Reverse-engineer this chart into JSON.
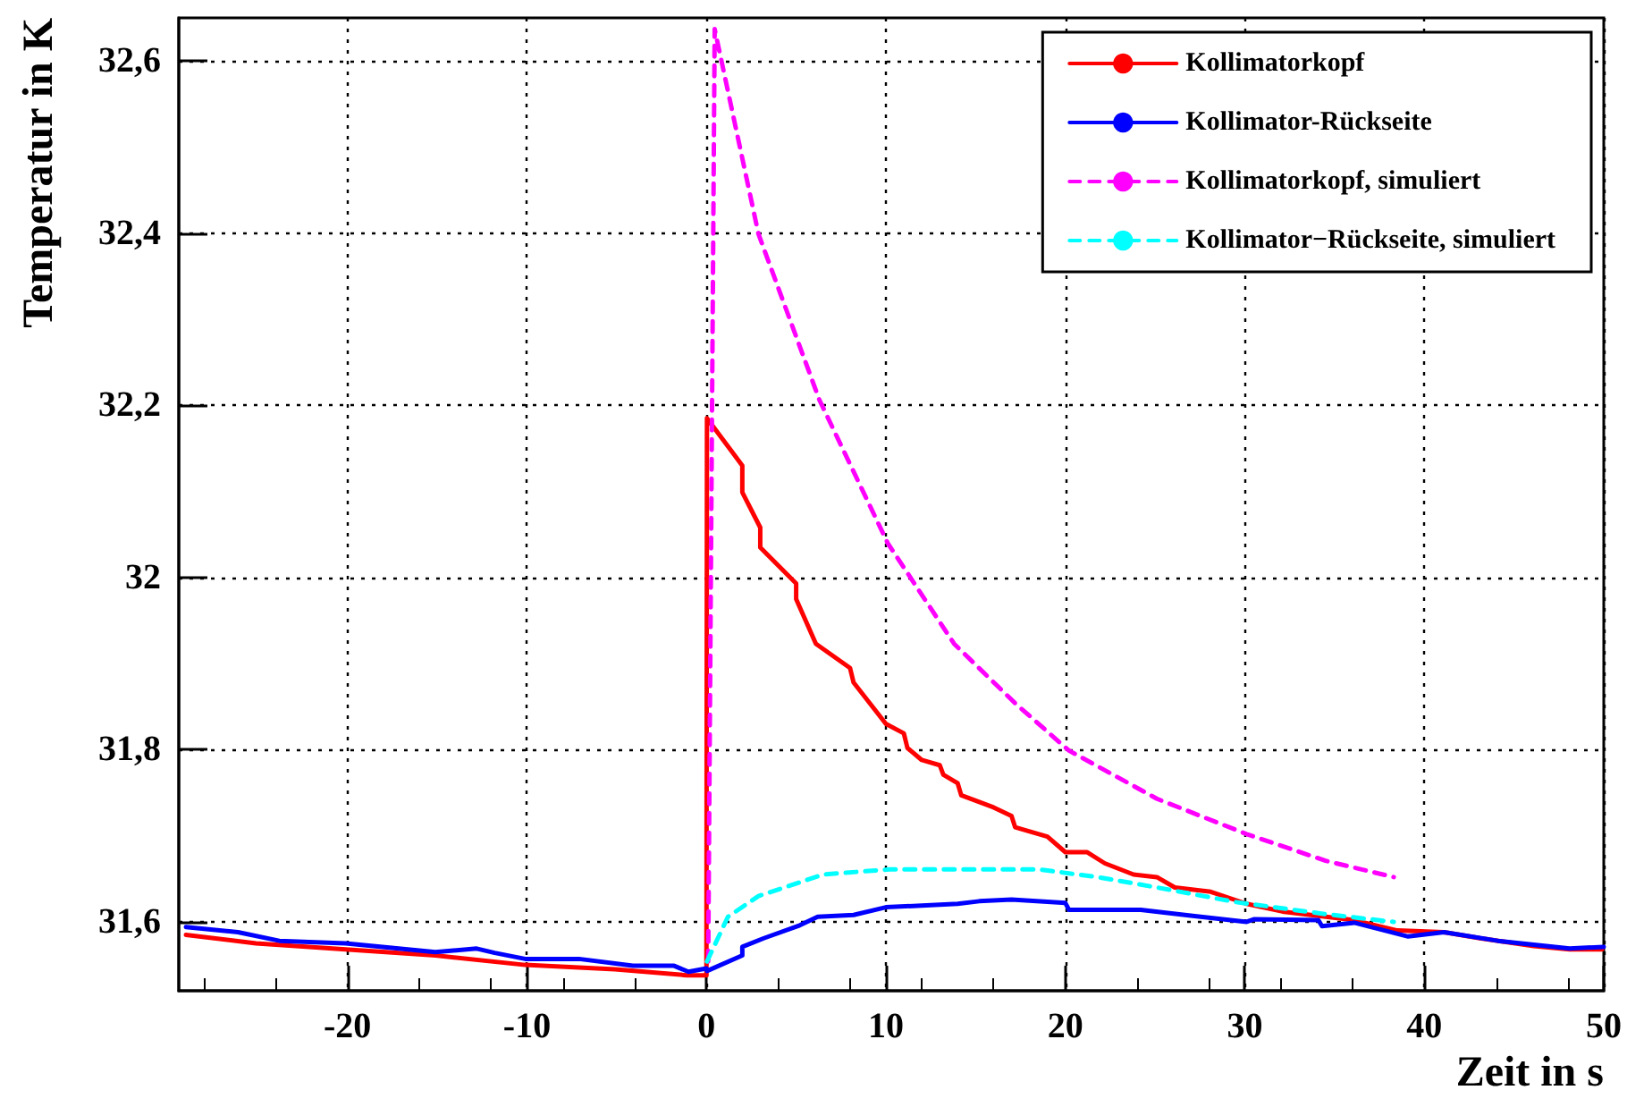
{
  "chart_data": {
    "type": "line",
    "xlabel": "Zeit in s",
    "ylabel": "Temperatur in K",
    "xlim": [
      -29.4,
      50
    ],
    "xticks": [
      -20,
      -10,
      0,
      10,
      20,
      30,
      40,
      50
    ],
    "ylim": [
      31.52,
      32.65
    ],
    "yticks": [
      {
        "value": 31.6,
        "label": "31,6"
      },
      {
        "value": 31.8,
        "label": "31,8"
      },
      {
        "value": 32,
        "label": "32"
      },
      {
        "value": 32.2,
        "label": "32,2"
      },
      {
        "value": 32.4,
        "label": "32,4"
      },
      {
        "value": 32.6,
        "label": "32,6"
      }
    ],
    "grid": true,
    "legend": "top right",
    "marker": "none",
    "series": [
      {
        "name": "Kollimatorkopf",
        "color": "#ff0000",
        "line_style": "solid",
        "x": [
          -29,
          -25.1,
          -20.1,
          -15.1,
          -10.1,
          -5.1,
          -1.1,
          0,
          0.03,
          2,
          2,
          3,
          3,
          5,
          5,
          6.1,
          8,
          8.2,
          10,
          11,
          11.2,
          12,
          13,
          13.2,
          14,
          14.2,
          16,
          17,
          17.2,
          19,
          20,
          21.2,
          22.2,
          23.8,
          25.1,
          26.1,
          28.1,
          30.1,
          32.1,
          34.1,
          36.1,
          38.5,
          41.1,
          43.1,
          46.1,
          48.1,
          49.9
        ],
        "values": [
          31.585,
          31.575,
          31.568,
          31.561,
          31.55,
          31.545,
          31.538,
          31.538,
          32.185,
          32.13,
          32.099,
          32.058,
          32.035,
          31.993,
          31.975,
          31.923,
          31.895,
          31.878,
          31.83,
          31.819,
          31.802,
          31.788,
          31.782,
          31.771,
          31.761,
          31.747,
          31.733,
          31.723,
          31.71,
          31.699,
          31.681,
          31.681,
          31.668,
          31.655,
          31.652,
          31.64,
          31.635,
          31.621,
          31.612,
          31.607,
          31.602,
          31.59,
          31.588,
          31.581,
          31.572,
          31.568,
          31.568
        ]
      },
      {
        "name": "Kollimator-Rückseite",
        "color": "#0000ff",
        "line_style": "solid",
        "x": [
          -29,
          -26.1,
          -23.8,
          -20.1,
          -15.1,
          -12.8,
          -11.8,
          -10.1,
          -7.1,
          -4.1,
          -1.8,
          -1,
          0,
          0.03,
          2,
          2,
          3.2,
          5.2,
          6.2,
          8.2,
          10,
          14,
          15.2,
          17,
          20,
          20.2,
          24.2,
          27.1,
          30.1,
          30.5,
          34.1,
          34.3,
          36.1,
          39.1,
          41.1,
          44.1,
          48.1,
          50
        ],
        "values": [
          31.594,
          31.588,
          31.578,
          31.575,
          31.565,
          31.569,
          31.564,
          31.557,
          31.557,
          31.549,
          31.549,
          31.542,
          31.546,
          31.543,
          31.561,
          31.571,
          31.581,
          31.596,
          31.606,
          31.608,
          31.617,
          31.621,
          31.624,
          31.626,
          31.622,
          31.614,
          31.614,
          31.607,
          31.6,
          31.603,
          31.602,
          31.595,
          31.599,
          31.583,
          31.588,
          31.578,
          31.569,
          31.571
        ]
      },
      {
        "name": "Kollimatorkopf, simuliert",
        "color": "#ff00ff",
        "line_style": "dashed",
        "x": [
          0.1,
          0.46,
          2.9,
          6.3,
          10.1,
          13.8,
          17.2,
          20.2,
          25.1,
          30.1,
          34.5,
          38.3
        ],
        "values": [
          31.554,
          32.637,
          32.399,
          32.206,
          32.04,
          31.923,
          31.854,
          31.799,
          31.743,
          31.702,
          31.671,
          31.652
        ]
      },
      {
        "name": "Kollimator−Rückseite, simuliert",
        "color": "#00ffff",
        "line_style": "dashed",
        "x": [
          0.03,
          1.2,
          2.9,
          6.5,
          10.2,
          18.5,
          21.8,
          25.1,
          29.5,
          34.5,
          38.3
        ],
        "values": [
          31.554,
          31.606,
          31.63,
          31.655,
          31.661,
          31.661,
          31.652,
          31.64,
          31.623,
          31.609,
          31.6
        ]
      }
    ]
  }
}
